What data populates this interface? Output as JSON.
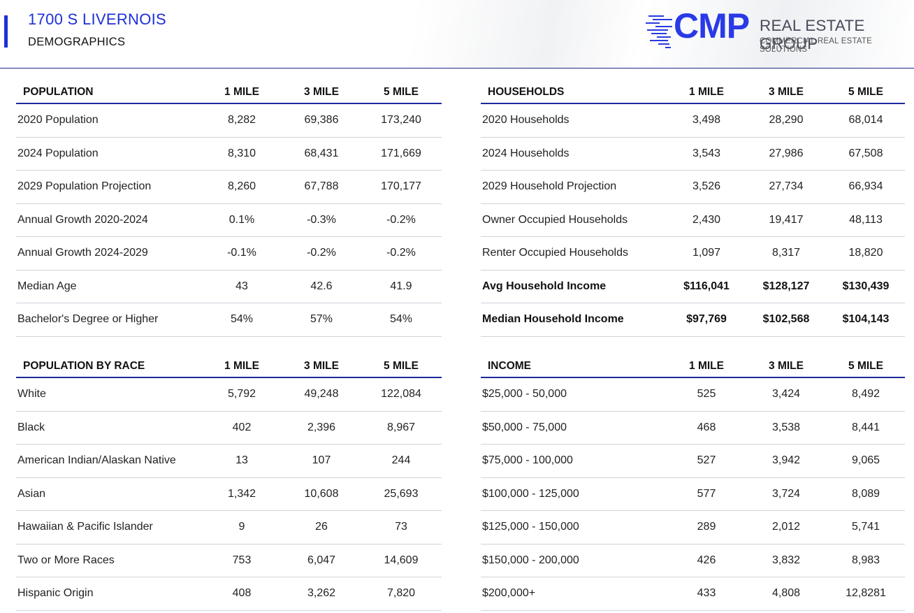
{
  "header": {
    "title": "1700 S LIVERNOIS",
    "subtitle": "DEMOGRAPHICS",
    "logo": {
      "main": "CMP",
      "line1": "REAL ESTATE GROUP",
      "line2": "COMMERCIAL REAL ESTATE SOLUTIONS"
    }
  },
  "colors": {
    "accent": "#1e2fd6",
    "rule": "#1c2a9c"
  },
  "population": {
    "header": [
      "POPULATION",
      "1 MILE",
      "3 MILE",
      "5 MILE"
    ],
    "rows": [
      {
        "label": "2020 Population",
        "v1": "8,282",
        "v3": "69,386",
        "v5": "173,240"
      },
      {
        "label": "2024 Population",
        "v1": "8,310",
        "v3": "68,431",
        "v5": "171,669"
      },
      {
        "label": "2029 Population Projection",
        "v1": "8,260",
        "v3": "67,788",
        "v5": "170,177"
      },
      {
        "label": "Annual Growth 2020-2024",
        "v1": "0.1%",
        "v3": "-0.3%",
        "v5": "-0.2%"
      },
      {
        "label": "Annual Growth 2024-2029",
        "v1": "-0.1%",
        "v3": "-0.2%",
        "v5": "-0.2%"
      },
      {
        "label": "Median Age",
        "v1": "43",
        "v3": "42.6",
        "v5": "41.9"
      },
      {
        "label": "Bachelor's Degree or Higher",
        "v1": "54%",
        "v3": "57%",
        "v5": "54%"
      }
    ]
  },
  "households": {
    "header": [
      "HOUSEHOLDS",
      "1 MILE",
      "3 MILE",
      "5 MILE"
    ],
    "rows": [
      {
        "label": "2020 Households",
        "v1": "3,498",
        "v3": "28,290",
        "v5": "68,014"
      },
      {
        "label": "2024 Households",
        "v1": "3,543",
        "v3": "27,986",
        "v5": "67,508"
      },
      {
        "label": "2029 Household Projection",
        "v1": "3,526",
        "v3": "27,734",
        "v5": "66,934"
      },
      {
        "label": "Owner Occupied Households",
        "v1": "2,430",
        "v3": "19,417",
        "v5": "48,113"
      },
      {
        "label": "Renter Occupied Households",
        "v1": "1,097",
        "v3": "8,317",
        "v5": "18,820"
      },
      {
        "label": "Avg Household Income",
        "v1": "$116,041",
        "v3": "$128,127",
        "v5": "$130,439"
      },
      {
        "label": "Median Household Income",
        "v1": "$97,769",
        "v3": "$102,568",
        "v5": "$104,143"
      }
    ]
  },
  "race": {
    "header": [
      "POPULATION BY RACE",
      "1 MILE",
      "3 MILE",
      "5 MILE"
    ],
    "rows": [
      {
        "label": "White",
        "v1": "5,792",
        "v3": "49,248",
        "v5": "122,084"
      },
      {
        "label": "Black",
        "v1": "402",
        "v3": "2,396",
        "v5": "8,967"
      },
      {
        "label": "American Indian/Alaskan Native",
        "v1": "13",
        "v3": "107",
        "v5": "244"
      },
      {
        "label": "Asian",
        "v1": "1,342",
        "v3": "10,608",
        "v5": "25,693"
      },
      {
        "label": "Hawaiian & Pacific Islander",
        "v1": "9",
        "v3": "26",
        "v5": "73"
      },
      {
        "label": "Two or More Races",
        "v1": "753",
        "v3": "6,047",
        "v5": "14,609"
      },
      {
        "label": "Hispanic Origin",
        "v1": "408",
        "v3": "3,262",
        "v5": "7,820"
      }
    ]
  },
  "income": {
    "header": [
      "INCOME",
      "1 MILE",
      "3 MILE",
      "5 MILE"
    ],
    "rows": [
      {
        "label": "$25,000 - 50,000",
        "v1": "525",
        "v3": "3,424",
        "v5": "8,492"
      },
      {
        "label": "$50,000 - 75,000",
        "v1": "468",
        "v3": "3,538",
        "v5": "8,441"
      },
      {
        "label": "$75,000 - 100,000",
        "v1": "527",
        "v3": "3,942",
        "v5": "9,065"
      },
      {
        "label": "$100,000 - 125,000",
        "v1": "577",
        "v3": "3,724",
        "v5": "8,089"
      },
      {
        "label": "$125,000 - 150,000",
        "v1": "289",
        "v3": "2,012",
        "v5": "5,741"
      },
      {
        "label": "$150,000 - 200,000",
        "v1": "426",
        "v3": "3,832",
        "v5": "8,983"
      },
      {
        "label": "$200,000+",
        "v1": "433",
        "v3": "4,808",
        "v5": "12,8281"
      }
    ]
  }
}
